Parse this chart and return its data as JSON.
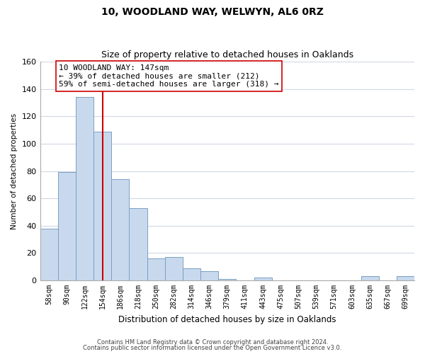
{
  "title": "10, WOODLAND WAY, WELWYN, AL6 0RZ",
  "subtitle": "Size of property relative to detached houses in Oaklands",
  "xlabel": "Distribution of detached houses by size in Oaklands",
  "ylabel": "Number of detached properties",
  "bar_labels": [
    "58sqm",
    "90sqm",
    "122sqm",
    "154sqm",
    "186sqm",
    "218sqm",
    "250sqm",
    "282sqm",
    "314sqm",
    "346sqm",
    "379sqm",
    "411sqm",
    "443sqm",
    "475sqm",
    "507sqm",
    "539sqm",
    "571sqm",
    "603sqm",
    "635sqm",
    "667sqm",
    "699sqm"
  ],
  "bar_heights": [
    38,
    79,
    134,
    109,
    74,
    53,
    16,
    17,
    9,
    7,
    1,
    0,
    2,
    0,
    0,
    0,
    0,
    0,
    3,
    0,
    3
  ],
  "bar_color": "#c9d9ed",
  "bar_edge_color": "#7a9fc2",
  "vline_x_index": 3,
  "vline_color": "#cc0000",
  "annotation_line1": "10 WOODLAND WAY: 147sqm",
  "annotation_line2": "← 39% of detached houses are smaller (212)",
  "annotation_line3": "59% of semi-detached houses are larger (318) →",
  "ylim": [
    0,
    160
  ],
  "yticks": [
    0,
    20,
    40,
    60,
    80,
    100,
    120,
    140,
    160
  ],
  "footer_line1": "Contains HM Land Registry data © Crown copyright and database right 2024.",
  "footer_line2": "Contains public sector information licensed under the Open Government Licence v3.0.",
  "background_color": "#ffffff",
  "grid_color": "#d0d8e4",
  "title_fontsize": 10,
  "subtitle_fontsize": 9,
  "xlabel_fontsize": 8.5,
  "ylabel_fontsize": 7.5,
  "tick_fontsize": 7,
  "footer_fontsize": 6,
  "annotation_fontsize": 8
}
